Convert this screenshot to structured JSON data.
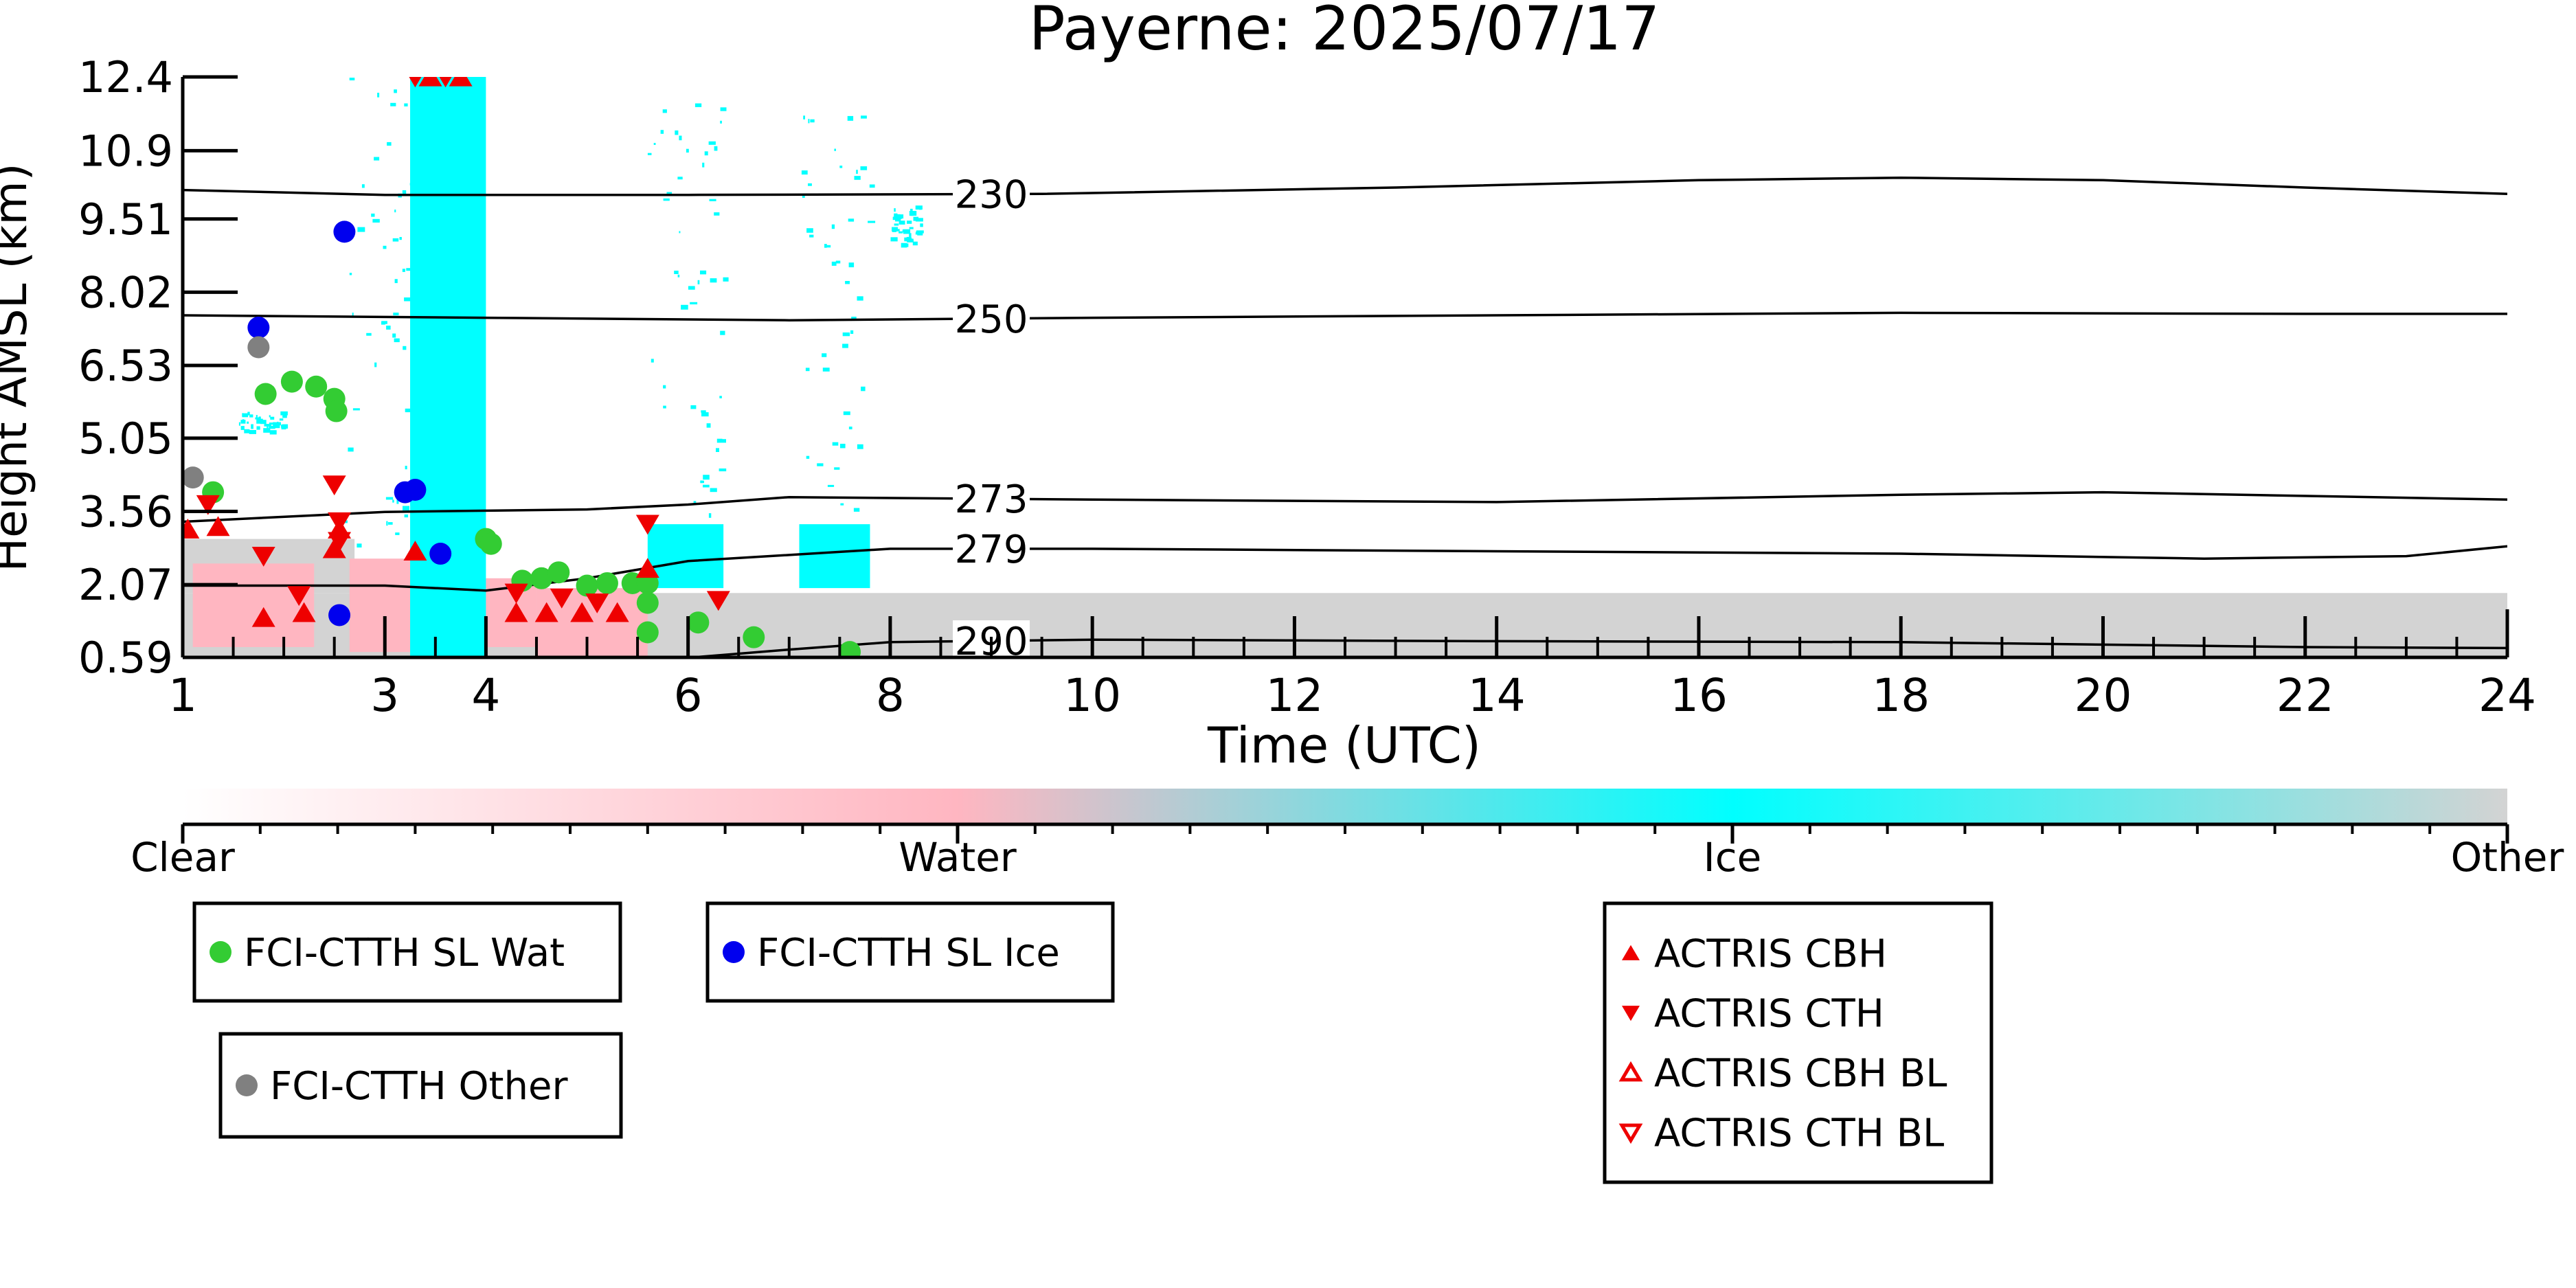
{
  "chart_data": {
    "type": "scatter",
    "title": "Payerne: 2025/07/17",
    "xlabel": "Time (UTC)",
    "ylabel": "Height AMSL (km)",
    "xlim": [
      1,
      24
    ],
    "ylim": [
      0.59,
      12.4
    ],
    "x_ticks": [
      1,
      3,
      4,
      6,
      8,
      10,
      12,
      14,
      16,
      18,
      20,
      22,
      24
    ],
    "x_tick_labels": [
      "1",
      "3",
      "4",
      "6",
      "8",
      "10",
      "12",
      "14",
      "16",
      "18",
      "20",
      "22",
      "24"
    ],
    "y_ticks": [
      0.59,
      2.07,
      3.56,
      5.05,
      6.53,
      8.02,
      9.51,
      10.9,
      12.4
    ],
    "y_tick_labels": [
      "0.59",
      "2.07",
      "3.56",
      "5.05",
      "6.53",
      "8.02",
      "9.51",
      "10.9",
      "12.4"
    ],
    "grid": false,
    "colorbar": {
      "labels": [
        "Clear",
        "Water",
        "Ice",
        "Other"
      ],
      "stops": [
        {
          "pos": 0.0,
          "color": "#ffffff"
        },
        {
          "pos": 0.333,
          "color": "#ffb6c1"
        },
        {
          "pos": 0.667,
          "color": "#00ffff"
        },
        {
          "pos": 1.0,
          "color": "#d3d3d3"
        }
      ]
    },
    "contours": [
      {
        "label": "230",
        "label_x": 9.0,
        "points": [
          [
            1,
            10.1
          ],
          [
            3,
            10.0
          ],
          [
            6,
            10.0
          ],
          [
            9.5,
            10.02
          ],
          [
            13,
            10.15
          ],
          [
            16,
            10.3
          ],
          [
            18,
            10.35
          ],
          [
            20,
            10.3
          ],
          [
            22,
            10.15
          ],
          [
            24,
            10.02
          ]
        ]
      },
      {
        "label": "250",
        "label_x": 9.0,
        "points": [
          [
            1,
            7.55
          ],
          [
            4,
            7.5
          ],
          [
            7,
            7.45
          ],
          [
            10,
            7.5
          ],
          [
            14,
            7.55
          ],
          [
            18,
            7.6
          ],
          [
            22,
            7.58
          ],
          [
            24,
            7.58
          ]
        ]
      },
      {
        "label": "273",
        "label_x": 9.0,
        "points": [
          [
            1,
            3.35
          ],
          [
            3,
            3.55
          ],
          [
            5,
            3.6
          ],
          [
            6,
            3.7
          ],
          [
            7,
            3.85
          ],
          [
            10,
            3.8
          ],
          [
            14,
            3.75
          ],
          [
            18,
            3.9
          ],
          [
            20,
            3.95
          ],
          [
            24,
            3.8
          ]
        ]
      },
      {
        "label": "279",
        "label_x": 9.0,
        "points": [
          [
            1,
            2.05
          ],
          [
            3,
            2.05
          ],
          [
            4,
            1.95
          ],
          [
            5,
            2.2
          ],
          [
            6,
            2.55
          ],
          [
            8,
            2.8
          ],
          [
            10,
            2.8
          ],
          [
            14,
            2.75
          ],
          [
            18,
            2.7
          ],
          [
            21,
            2.6
          ],
          [
            23,
            2.65
          ],
          [
            24,
            2.85
          ]
        ]
      },
      {
        "label": "290",
        "label_x": 9.0,
        "points": [
          [
            6.05,
            0.59
          ],
          [
            7,
            0.75
          ],
          [
            8,
            0.9
          ],
          [
            10,
            0.95
          ],
          [
            14,
            0.92
          ],
          [
            18,
            0.9
          ],
          [
            22,
            0.8
          ],
          [
            24,
            0.78
          ]
        ]
      }
    ],
    "mask_regions": [
      {
        "class": "Ice",
        "color": "#00ffff",
        "density": "solid",
        "x": [
          3.25,
          4.0
        ],
        "y": [
          0.59,
          12.4
        ]
      },
      {
        "class": "Ice",
        "color": "#00ffff",
        "density": "sparse",
        "x": [
          2.6,
          3.25
        ],
        "y": [
          2.6,
          12.4
        ]
      },
      {
        "class": "Ice",
        "color": "#00ffff",
        "density": "solid",
        "x": [
          5.6,
          6.35
        ],
        "y": [
          2.0,
          3.3
        ]
      },
      {
        "class": "Ice",
        "color": "#00ffff",
        "density": "sparse",
        "x": [
          5.6,
          6.35
        ],
        "y": [
          3.3,
          12.0
        ]
      },
      {
        "class": "Ice",
        "color": "#00ffff",
        "density": "solid",
        "x": [
          7.1,
          7.8
        ],
        "y": [
          2.0,
          3.3
        ]
      },
      {
        "class": "Ice",
        "color": "#00ffff",
        "density": "sparse",
        "x": [
          7.1,
          7.8
        ],
        "y": [
          3.3,
          12.0
        ]
      },
      {
        "class": "Ice",
        "color": "#00ffff",
        "density": "sparse",
        "x": [
          8.0,
          8.3
        ],
        "y": [
          9.0,
          9.8
        ]
      },
      {
        "class": "Ice",
        "color": "#00ffff",
        "density": "sparse",
        "x": [
          1.55,
          2.0
        ],
        "y": [
          5.2,
          5.6
        ]
      },
      {
        "class": "Water",
        "color": "#ffb6c1",
        "density": "solid",
        "x": [
          1.1,
          2.3
        ],
        "y": [
          0.8,
          2.5
        ]
      },
      {
        "class": "Water",
        "color": "#ffb6c1",
        "density": "solid",
        "x": [
          2.65,
          3.5
        ],
        "y": [
          0.7,
          2.6
        ]
      },
      {
        "class": "Water",
        "color": "#ffb6c1",
        "density": "solid",
        "x": [
          3.5,
          4.5
        ],
        "y": [
          0.8,
          2.2
        ]
      },
      {
        "class": "Water",
        "color": "#ffb6c1",
        "density": "solid",
        "x": [
          4.5,
          5.6
        ],
        "y": [
          0.6,
          2.0
        ]
      },
      {
        "class": "Other",
        "color": "#d3d3d3",
        "density": "solid",
        "x": [
          1,
          24
        ],
        "y": [
          0.59,
          1.9
        ]
      },
      {
        "class": "Other",
        "color": "#d3d3d3",
        "density": "solid",
        "x": [
          1,
          2.7
        ],
        "y": [
          1.9,
          3.0
        ]
      }
    ],
    "series": [
      {
        "name": "FCI-CTTH SL Wat",
        "marker": "circle",
        "color": "#33cc33",
        "points": [
          [
            1.3,
            3.95
          ],
          [
            1.82,
            5.95
          ],
          [
            2.08,
            6.2
          ],
          [
            2.32,
            6.1
          ],
          [
            2.5,
            5.85
          ],
          [
            2.52,
            5.6
          ],
          [
            4.0,
            3.0
          ],
          [
            4.05,
            2.9
          ],
          [
            4.36,
            2.15
          ],
          [
            4.55,
            2.2
          ],
          [
            4.72,
            2.32
          ],
          [
            5.0,
            2.05
          ],
          [
            5.2,
            2.1
          ],
          [
            5.45,
            2.1
          ],
          [
            5.6,
            2.1
          ],
          [
            5.6,
            1.7
          ],
          [
            5.6,
            1.1
          ],
          [
            6.1,
            1.3
          ],
          [
            6.65,
            1.0
          ],
          [
            7.6,
            0.7
          ]
        ]
      },
      {
        "name": "FCI-CTTH SL Ice",
        "marker": "circle",
        "color": "#0000ee",
        "points": [
          [
            2.6,
            9.25
          ],
          [
            1.75,
            7.3
          ],
          [
            3.2,
            3.95
          ],
          [
            3.3,
            4.0
          ],
          [
            3.55,
            2.7
          ],
          [
            2.55,
            1.45
          ]
        ]
      },
      {
        "name": "FCI-CTTH Other",
        "marker": "circle",
        "color": "#808080",
        "points": [
          [
            1.1,
            4.25
          ],
          [
            1.75,
            6.9
          ]
        ]
      },
      {
        "name": "ACTRIS CBH",
        "marker": "triangle-up",
        "color": "#ee0000",
        "points": [
          [
            1.05,
            3.2
          ],
          [
            1.35,
            3.25
          ],
          [
            1.8,
            1.4
          ],
          [
            2.2,
            1.5
          ],
          [
            2.5,
            2.8
          ],
          [
            3.3,
            2.75
          ],
          [
            3.45,
            12.4
          ],
          [
            3.75,
            12.4
          ],
          [
            4.3,
            1.5
          ],
          [
            4.6,
            1.5
          ],
          [
            4.95,
            1.5
          ],
          [
            5.3,
            1.5
          ],
          [
            5.6,
            2.4
          ],
          [
            2.55,
            3.2
          ]
        ]
      },
      {
        "name": "ACTRIS CTH",
        "marker": "triangle-down",
        "color": "#ee0000",
        "points": [
          [
            1.25,
            3.7
          ],
          [
            1.8,
            2.65
          ],
          [
            2.15,
            1.85
          ],
          [
            2.5,
            4.1
          ],
          [
            2.55,
            3.35
          ],
          [
            2.55,
            2.95
          ],
          [
            4.3,
            1.9
          ],
          [
            4.75,
            1.8
          ],
          [
            5.1,
            1.7
          ],
          [
            5.6,
            3.3
          ],
          [
            6.3,
            1.75
          ],
          [
            3.3,
            12.4
          ],
          [
            3.6,
            12.4
          ]
        ]
      },
      {
        "name": "ACTRIS CBH BL",
        "marker": "triangle-up-open",
        "color": "#ee0000",
        "points": []
      },
      {
        "name": "ACTRIS CTH BL",
        "marker": "triangle-down-open",
        "color": "#ee0000",
        "points": []
      }
    ],
    "legends": [
      {
        "entries": [
          "FCI-CTTH SL Wat"
        ]
      },
      {
        "entries": [
          "FCI-CTTH SL Ice"
        ]
      },
      {
        "entries": [
          "FCI-CTTH Other"
        ]
      },
      {
        "entries": [
          "ACTRIS CBH",
          "ACTRIS CTH",
          "ACTRIS CBH BL",
          "ACTRIS CTH BL"
        ]
      }
    ]
  }
}
